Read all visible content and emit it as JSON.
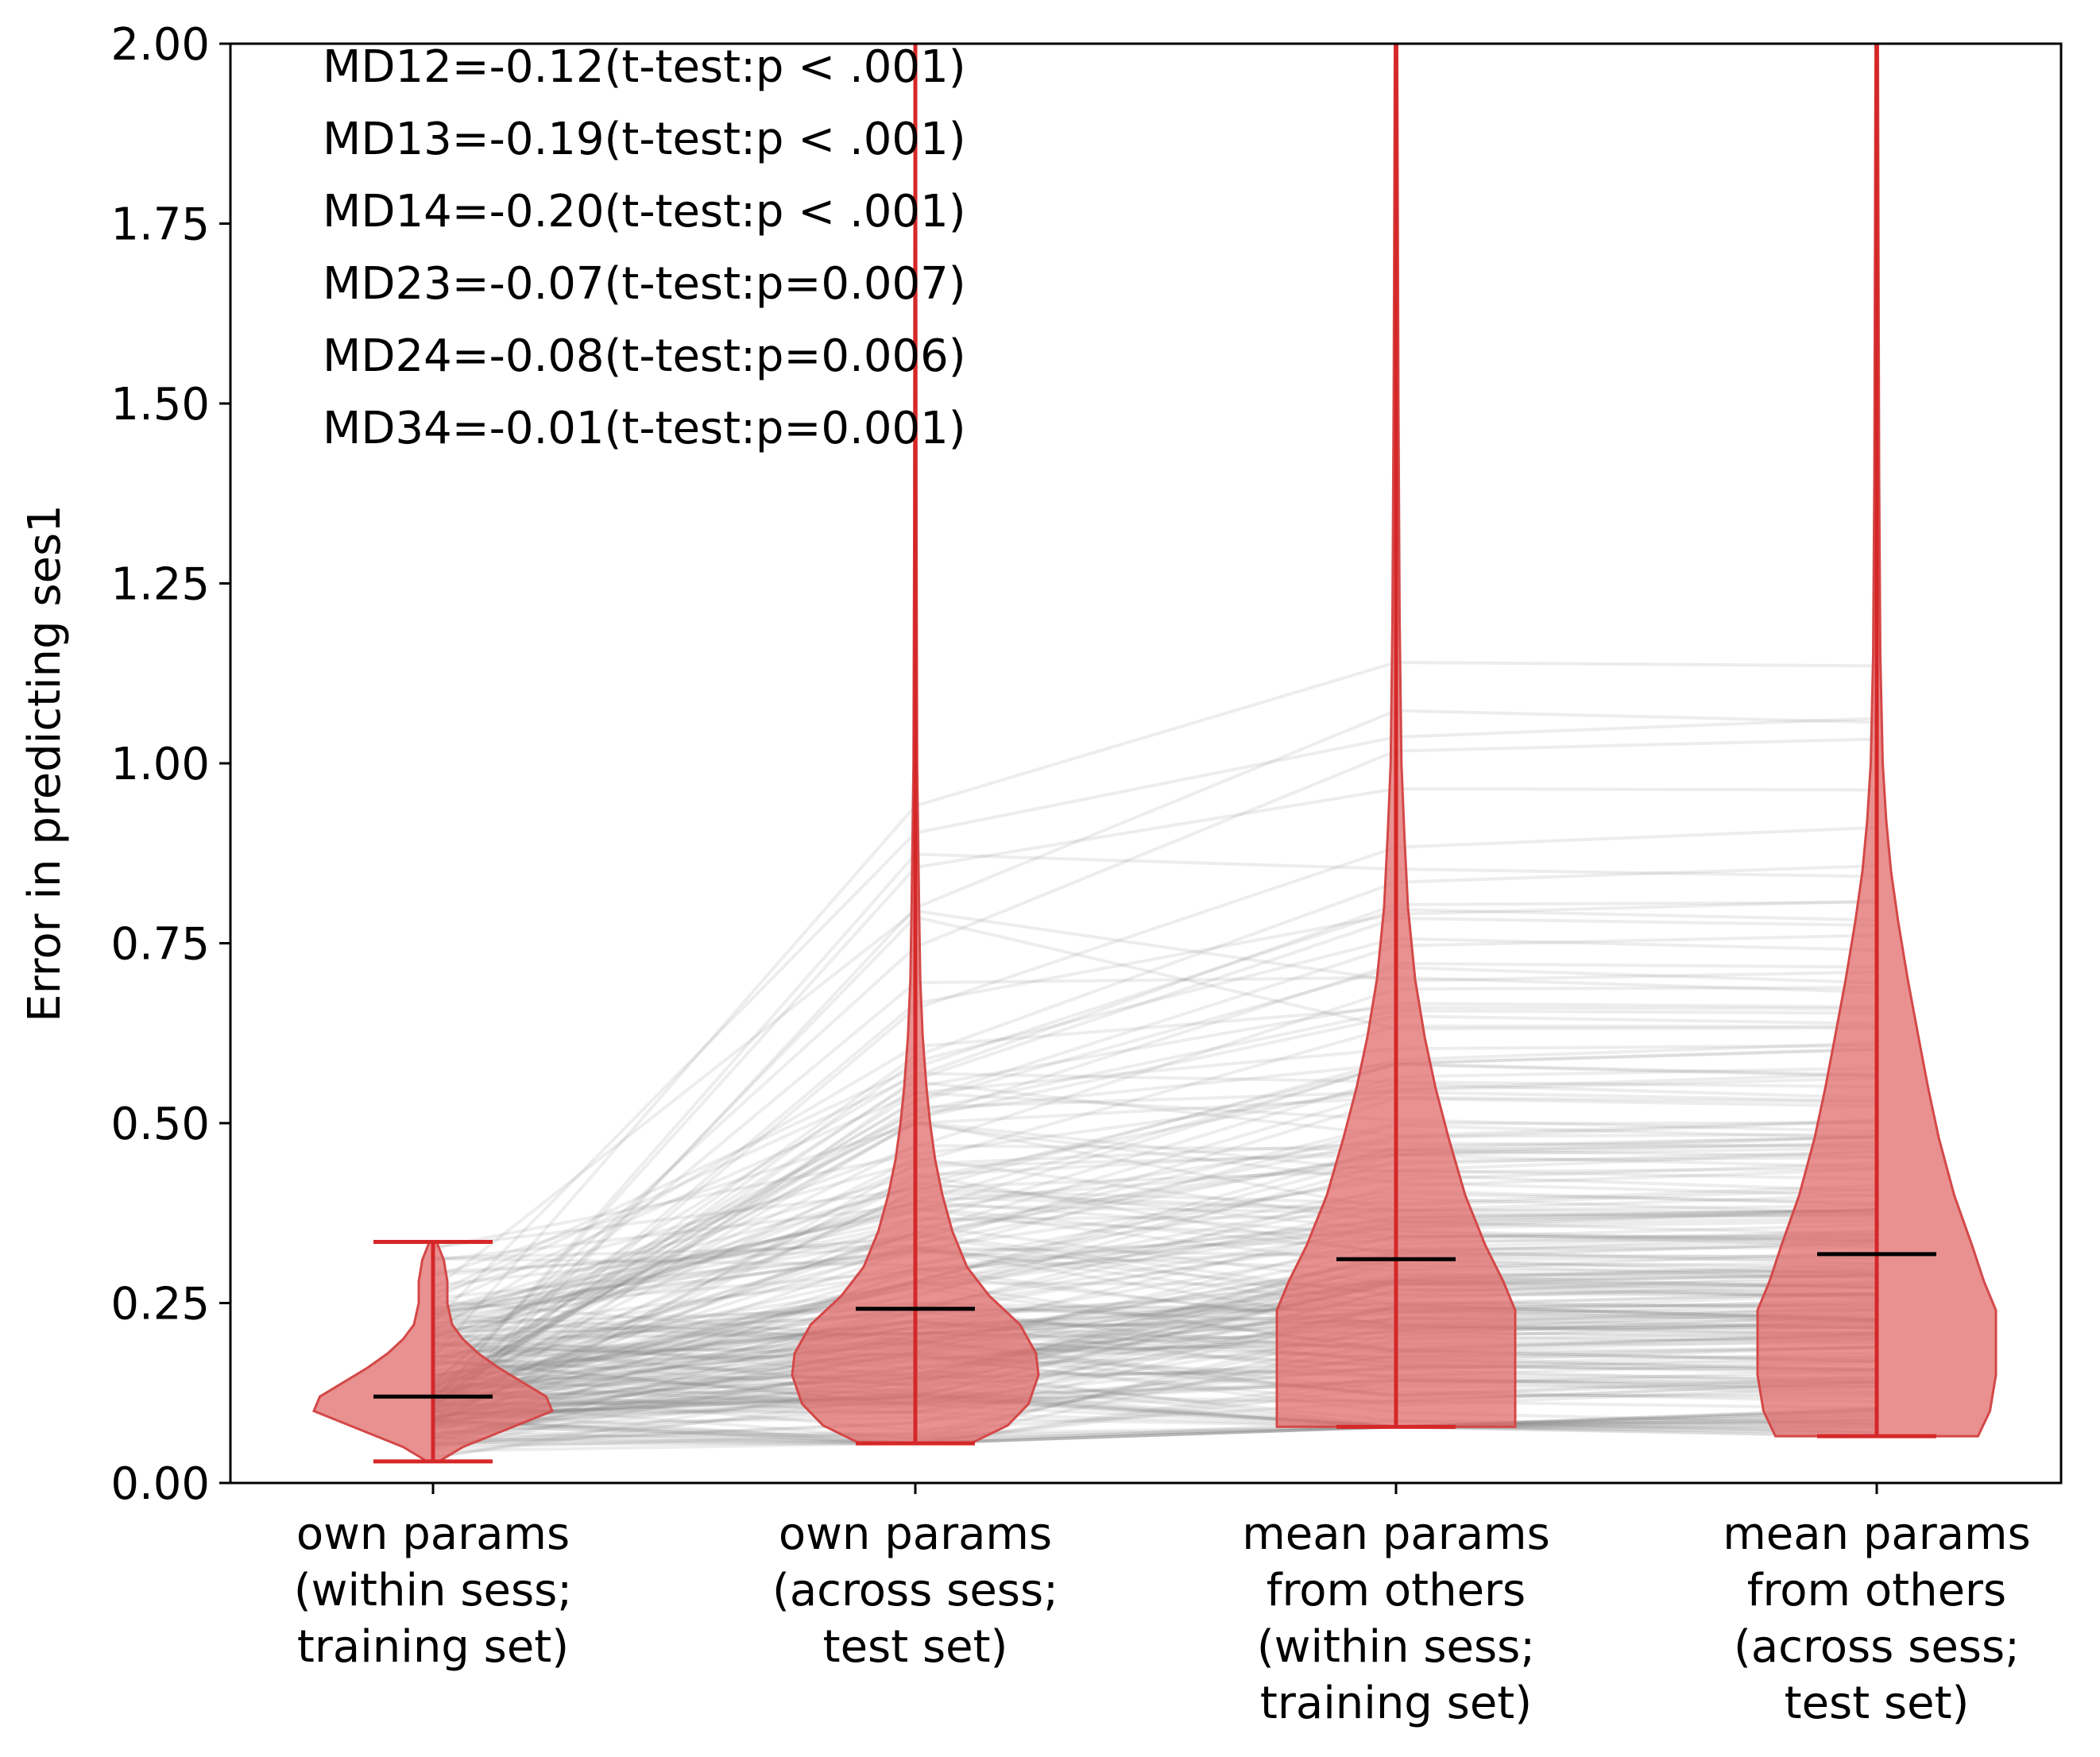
{
  "chart_data": {
    "type": "violin",
    "title": "",
    "xlabel": "",
    "ylabel": "Error in predicting ses1",
    "ylim": [
      0,
      2
    ],
    "yticks": [
      0.0,
      0.25,
      0.5,
      0.75,
      1.0,
      1.25,
      1.5,
      1.75,
      2.0
    ],
    "ytick_labels": [
      "0.00",
      "0.25",
      "0.50",
      "0.75",
      "1.00",
      "1.25",
      "1.50",
      "1.75",
      "2.00"
    ],
    "grid": false,
    "categories": [
      [
        "own params",
        "(within sess;",
        "training set)"
      ],
      [
        "own params",
        "(across sess;",
        "test set)"
      ],
      [
        "mean params",
        "from others",
        "(within sess;",
        "training set)"
      ],
      [
        "mean params",
        "from others",
        "(across sess;",
        "test set)"
      ]
    ],
    "violins": [
      {
        "min": 0.03,
        "max": 0.335,
        "mean": 0.12,
        "density": [
          [
            0.03,
            0.05
          ],
          [
            0.05,
            0.25
          ],
          [
            0.07,
            0.55
          ],
          [
            0.09,
            0.85
          ],
          [
            0.1,
            1.0
          ],
          [
            0.12,
            0.95
          ],
          [
            0.14,
            0.75
          ],
          [
            0.16,
            0.55
          ],
          [
            0.18,
            0.38
          ],
          [
            0.2,
            0.25
          ],
          [
            0.22,
            0.16
          ],
          [
            0.25,
            0.12
          ],
          [
            0.28,
            0.12
          ],
          [
            0.31,
            0.09
          ],
          [
            0.335,
            0.03
          ]
        ]
      },
      {
        "min": 0.055,
        "max": 2.0,
        "mean": 0.242,
        "density": [
          [
            0.055,
            0.45
          ],
          [
            0.08,
            0.75
          ],
          [
            0.11,
            0.92
          ],
          [
            0.15,
            1.0
          ],
          [
            0.18,
            0.98
          ],
          [
            0.22,
            0.85
          ],
          [
            0.26,
            0.6
          ],
          [
            0.3,
            0.42
          ],
          [
            0.35,
            0.3
          ],
          [
            0.4,
            0.22
          ],
          [
            0.45,
            0.16
          ],
          [
            0.5,
            0.12
          ],
          [
            0.55,
            0.09
          ],
          [
            0.62,
            0.06
          ],
          [
            0.7,
            0.04
          ],
          [
            0.8,
            0.03
          ],
          [
            1.0,
            0.015
          ],
          [
            1.3,
            0.01
          ],
          [
            2.0,
            0.005
          ]
        ]
      },
      {
        "min": 0.078,
        "max": 2.0,
        "mean": 0.311,
        "density": [
          [
            0.078,
            1.0
          ],
          [
            0.1,
            1.0
          ],
          [
            0.16,
            1.0
          ],
          [
            0.24,
            1.0
          ],
          [
            0.28,
            0.9
          ],
          [
            0.33,
            0.75
          ],
          [
            0.4,
            0.58
          ],
          [
            0.48,
            0.44
          ],
          [
            0.55,
            0.33
          ],
          [
            0.62,
            0.24
          ],
          [
            0.7,
            0.16
          ],
          [
            0.8,
            0.1
          ],
          [
            0.9,
            0.07
          ],
          [
            1.0,
            0.045
          ],
          [
            1.2,
            0.03
          ],
          [
            1.5,
            0.02
          ],
          [
            1.75,
            0.015
          ],
          [
            2.0,
            0.01
          ]
        ]
      },
      {
        "min": 0.065,
        "max": 2.0,
        "mean": 0.318,
        "density": [
          [
            0.065,
            0.85
          ],
          [
            0.1,
            0.95
          ],
          [
            0.15,
            1.0
          ],
          [
            0.24,
            1.0
          ],
          [
            0.28,
            0.9
          ],
          [
            0.33,
            0.8
          ],
          [
            0.4,
            0.65
          ],
          [
            0.48,
            0.52
          ],
          [
            0.55,
            0.43
          ],
          [
            0.62,
            0.35
          ],
          [
            0.7,
            0.26
          ],
          [
            0.78,
            0.18
          ],
          [
            0.85,
            0.12
          ],
          [
            0.92,
            0.08
          ],
          [
            1.0,
            0.05
          ],
          [
            1.15,
            0.03
          ],
          [
            1.4,
            0.02
          ],
          [
            2.0,
            0.01
          ]
        ]
      }
    ],
    "annotations": [
      "MD12=-0.12(t-test:p < .001)",
      "MD13=-0.19(t-test:p < .001)",
      "MD14=-0.20(t-test:p < .001)",
      "MD23=-0.07(t-test:p=0.007)",
      "MD24=-0.08(t-test:p=0.006)",
      "MD34=-0.01(t-test:p=0.001)"
    ],
    "colors": {
      "violin_fill": "#e06666",
      "violin_edge": "#d44848",
      "extrema": "#d62728",
      "mean_line": "#000000",
      "paired_lines": "#808080"
    },
    "paired_lines_note": ""
  }
}
